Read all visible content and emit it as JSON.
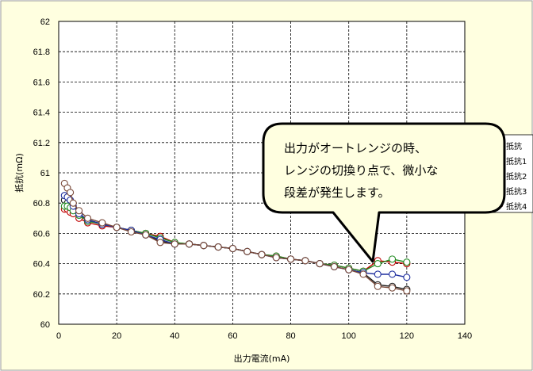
{
  "chart_data": {
    "type": "line",
    "title": "",
    "xlabel": "出力電流(mA)",
    "ylabel": "抵抗(mΩ)",
    "xlim": [
      0,
      140
    ],
    "ylim": [
      60,
      62
    ],
    "xticks": [
      0,
      20,
      40,
      60,
      80,
      100,
      120,
      140
    ],
    "yticks": [
      60,
      60.2,
      60.4,
      60.6,
      60.8,
      61,
      61.2,
      61.4,
      61.6,
      61.8,
      62
    ],
    "grid": true,
    "legend_position": "right",
    "series": [
      {
        "name": "抵抗",
        "color": "#1a1a1a",
        "points": [
          [
            2,
            60.82
          ],
          [
            3,
            60.8
          ],
          [
            4,
            60.78
          ],
          [
            5,
            60.76
          ],
          [
            7,
            60.72
          ],
          [
            10,
            60.69
          ],
          [
            15,
            60.66
          ],
          [
            20,
            60.64
          ],
          [
            25,
            60.62
          ],
          [
            30,
            60.59
          ],
          [
            35,
            60.55
          ],
          [
            40,
            60.53
          ],
          [
            45,
            60.53
          ],
          [
            50,
            60.52
          ],
          [
            55,
            60.51
          ],
          [
            60,
            60.5
          ],
          [
            65,
            60.48
          ],
          [
            70,
            60.46
          ],
          [
            75,
            60.44
          ],
          [
            80,
            60.43
          ],
          [
            85,
            60.42
          ],
          [
            90,
            60.4
          ],
          [
            95,
            60.38
          ],
          [
            100,
            60.36
          ],
          [
            105,
            60.34
          ],
          [
            110,
            60.26
          ],
          [
            115,
            60.25
          ],
          [
            120,
            60.23
          ]
        ]
      },
      {
        "name": "抵抗1",
        "color": "#c00000",
        "points": [
          [
            2,
            60.76
          ],
          [
            3,
            60.76
          ],
          [
            4,
            60.74
          ],
          [
            5,
            60.73
          ],
          [
            7,
            60.7
          ],
          [
            10,
            60.67
          ],
          [
            15,
            60.65
          ],
          [
            20,
            60.64
          ],
          [
            25,
            60.62
          ],
          [
            30,
            60.6
          ],
          [
            35,
            60.58
          ],
          [
            40,
            60.54
          ],
          [
            45,
            60.53
          ],
          [
            50,
            60.52
          ],
          [
            55,
            60.51
          ],
          [
            60,
            60.5
          ],
          [
            65,
            60.48
          ],
          [
            70,
            60.46
          ],
          [
            75,
            60.45
          ],
          [
            80,
            60.43
          ],
          [
            85,
            60.42
          ],
          [
            90,
            60.4
          ],
          [
            95,
            60.39
          ],
          [
            100,
            60.37
          ],
          [
            105,
            60.35
          ],
          [
            110,
            60.42
          ],
          [
            115,
            60.41
          ],
          [
            120,
            60.4
          ]
        ]
      },
      {
        "name": "抵抗2",
        "color": "#228b22",
        "points": [
          [
            2,
            60.78
          ],
          [
            3,
            60.78
          ],
          [
            4,
            60.77
          ],
          [
            5,
            60.75
          ],
          [
            7,
            60.72
          ],
          [
            10,
            60.68
          ],
          [
            15,
            60.66
          ],
          [
            20,
            60.64
          ],
          [
            25,
            60.62
          ],
          [
            30,
            60.6
          ],
          [
            35,
            60.57
          ],
          [
            40,
            60.54
          ],
          [
            45,
            60.53
          ],
          [
            50,
            60.52
          ],
          [
            55,
            60.51
          ],
          [
            60,
            60.5
          ],
          [
            65,
            60.48
          ],
          [
            70,
            60.46
          ],
          [
            75,
            60.45
          ],
          [
            80,
            60.43
          ],
          [
            85,
            60.42
          ],
          [
            90,
            60.4
          ],
          [
            95,
            60.39
          ],
          [
            100,
            60.37
          ],
          [
            105,
            60.35
          ],
          [
            110,
            60.4
          ],
          [
            115,
            60.43
          ],
          [
            120,
            60.41
          ]
        ]
      },
      {
        "name": "抵抗3",
        "color": "#1f2f9f",
        "points": [
          [
            2,
            60.85
          ],
          [
            3,
            60.84
          ],
          [
            4,
            60.82
          ],
          [
            5,
            60.78
          ],
          [
            7,
            60.73
          ],
          [
            10,
            60.69
          ],
          [
            15,
            60.66
          ],
          [
            20,
            60.64
          ],
          [
            25,
            60.62
          ],
          [
            30,
            60.59
          ],
          [
            35,
            60.56
          ],
          [
            40,
            60.53
          ],
          [
            45,
            60.53
          ],
          [
            50,
            60.52
          ],
          [
            55,
            60.51
          ],
          [
            60,
            60.5
          ],
          [
            65,
            60.48
          ],
          [
            70,
            60.46
          ],
          [
            75,
            60.44
          ],
          [
            80,
            60.43
          ],
          [
            85,
            60.42
          ],
          [
            90,
            60.4
          ],
          [
            95,
            60.38
          ],
          [
            100,
            60.36
          ],
          [
            105,
            60.34
          ],
          [
            110,
            60.33
          ],
          [
            115,
            60.33
          ],
          [
            120,
            60.31
          ]
        ]
      },
      {
        "name": "抵抗4",
        "color": "#7a4a3a",
        "points": [
          [
            2,
            60.93
          ],
          [
            3,
            60.9
          ],
          [
            4,
            60.87
          ],
          [
            5,
            60.8
          ],
          [
            7,
            60.75
          ],
          [
            10,
            60.7
          ],
          [
            15,
            60.67
          ],
          [
            20,
            60.64
          ],
          [
            25,
            60.61
          ],
          [
            30,
            60.59
          ],
          [
            35,
            60.54
          ],
          [
            40,
            60.53
          ],
          [
            45,
            60.53
          ],
          [
            50,
            60.52
          ],
          [
            55,
            60.51
          ],
          [
            60,
            60.5
          ],
          [
            65,
            60.48
          ],
          [
            70,
            60.46
          ],
          [
            75,
            60.44
          ],
          [
            80,
            60.43
          ],
          [
            85,
            60.42
          ],
          [
            90,
            60.4
          ],
          [
            95,
            60.38
          ],
          [
            100,
            60.36
          ],
          [
            105,
            60.33
          ],
          [
            110,
            60.25
          ],
          [
            115,
            60.24
          ],
          [
            120,
            60.22
          ]
        ]
      }
    ],
    "annotation": {
      "lines": [
        "出力がオートレンジの時、",
        "レンジの切換り点で、微小な",
        "段差が発生します。"
      ],
      "points_to": [
        107,
        60.35
      ]
    }
  },
  "colors": {
    "outer_background": "#ffffe0",
    "plot_background": "#ffffff",
    "grid": "#000000",
    "callout_fill": "#ffffe0",
    "callout_border": "#000000"
  }
}
